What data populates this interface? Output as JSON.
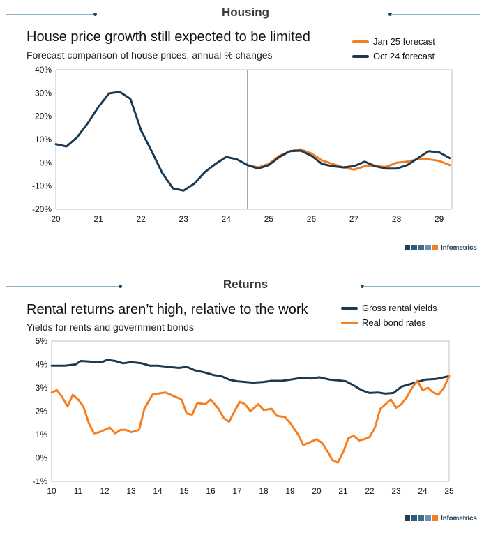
{
  "colors": {
    "navy": "#1b3a52",
    "orange": "#f57f20",
    "rule": "#8fb3c8",
    "axis": "#bfbfbf"
  },
  "housing": {
    "section_title": "Housing",
    "brand": "Infometrics",
    "chart_data": {
      "type": "line",
      "title": "House price growth still expected to be limited",
      "subtitle": "Forecast comparison of house prices, annual % changes",
      "xlim": [
        20,
        29.3
      ],
      "ylim": [
        -20,
        40
      ],
      "x_ticks": [
        20,
        21,
        22,
        23,
        24,
        25,
        26,
        27,
        28,
        29
      ],
      "x_tick_labels": [
        "20",
        "21",
        "22",
        "23",
        "24",
        "25",
        "26",
        "27",
        "28",
        "29"
      ],
      "y_ticks": [
        -20,
        -10,
        0,
        10,
        20,
        30,
        40
      ],
      "y_tick_labels": [
        "-20%",
        "-10%",
        "0%",
        "10%",
        "20%",
        "30%",
        "40%"
      ],
      "vline_x": 24.5,
      "legend_position": "top-right",
      "series": [
        {
          "name": "Jan 25 forecast",
          "color": "#f57f20",
          "x": [
            24.5,
            24.75,
            25.0,
            25.25,
            25.5,
            25.75,
            26.0,
            26.25,
            26.5,
            26.75,
            27.0,
            27.25,
            27.5,
            27.75,
            28.0,
            28.25,
            28.5,
            28.75,
            29.0,
            29.25
          ],
          "y": [
            -1,
            -2,
            -0.5,
            3,
            5,
            5.8,
            4,
            1,
            -0.5,
            -2,
            -3,
            -1.5,
            -1.5,
            -1.8,
            0,
            0.5,
            1.5,
            1.5,
            0.8,
            -1
          ]
        },
        {
          "name": "Oct 24 forecast",
          "color": "#1b3a52",
          "x": [
            20.0,
            20.25,
            20.5,
            20.75,
            21.0,
            21.25,
            21.5,
            21.75,
            22.0,
            22.25,
            22.5,
            22.75,
            23.0,
            23.25,
            23.5,
            23.75,
            24.0,
            24.25,
            24.5,
            24.75,
            25.0,
            25.25,
            25.5,
            25.75,
            26.0,
            26.25,
            26.5,
            26.75,
            27.0,
            27.25,
            27.5,
            27.75,
            28.0,
            28.25,
            28.5,
            28.75,
            29.0,
            29.25
          ],
          "y": [
            8,
            7,
            11,
            17,
            24,
            29.8,
            30.5,
            27.5,
            14,
            5,
            -4.5,
            -11,
            -12,
            -9,
            -4,
            -0.5,
            2.5,
            1.5,
            -1,
            -2.5,
            -1,
            2.5,
            5,
            5.2,
            3,
            -0.5,
            -1.5,
            -2,
            -1.5,
            0.5,
            -1.5,
            -2.5,
            -2.5,
            -1,
            2,
            5,
            4.5,
            2
          ]
        }
      ]
    }
  },
  "returns": {
    "section_title": "Returns",
    "brand": "Infometrics",
    "chart_data": {
      "type": "line",
      "title": "Rental returns aren’t high, relative to the work",
      "subtitle": "Yields for rents and government bonds",
      "xlim": [
        10,
        25
      ],
      "ylim": [
        -1,
        5
      ],
      "x_ticks": [
        10,
        11,
        12,
        13,
        14,
        15,
        16,
        17,
        18,
        19,
        20,
        21,
        22,
        23,
        24,
        25
      ],
      "x_tick_labels": [
        "10",
        "11",
        "12",
        "13",
        "14",
        "15",
        "16",
        "17",
        "18",
        "19",
        "20",
        "21",
        "22",
        "23",
        "24",
        "25"
      ],
      "y_ticks": [
        -1,
        0,
        1,
        2,
        3,
        4,
        5
      ],
      "y_tick_labels": [
        "-1%",
        "0%",
        "1%",
        "2%",
        "3%",
        "4%",
        "5%"
      ],
      "legend_position": "top-right",
      "series": [
        {
          "name": "Gross rental yields",
          "color": "#1b3a52",
          "x": [
            10.0,
            10.5,
            10.9,
            11.1,
            11.5,
            11.9,
            12.1,
            12.4,
            12.7,
            13.0,
            13.4,
            13.7,
            14.0,
            14.4,
            14.8,
            15.1,
            15.4,
            15.8,
            16.1,
            16.4,
            16.7,
            17.0,
            17.3,
            17.6,
            18.0,
            18.3,
            18.7,
            19.0,
            19.4,
            19.8,
            20.1,
            20.5,
            20.8,
            21.1,
            21.4,
            21.7,
            22.0,
            22.3,
            22.6,
            22.9,
            23.2,
            23.5,
            23.8,
            24.1,
            24.5,
            25.0
          ],
          "y": [
            3.95,
            3.95,
            4.0,
            4.15,
            4.12,
            4.1,
            4.2,
            4.15,
            4.05,
            4.1,
            4.05,
            3.95,
            3.95,
            3.9,
            3.85,
            3.9,
            3.75,
            3.65,
            3.55,
            3.5,
            3.35,
            3.28,
            3.25,
            3.22,
            3.25,
            3.3,
            3.3,
            3.35,
            3.42,
            3.4,
            3.45,
            3.35,
            3.32,
            3.28,
            3.1,
            2.9,
            2.78,
            2.8,
            2.75,
            2.78,
            3.05,
            3.15,
            3.25,
            3.35,
            3.38,
            3.5
          ]
        },
        {
          "name": "Real bond rates",
          "color": "#f57f20",
          "x": [
            10.0,
            10.2,
            10.4,
            10.6,
            10.8,
            11.0,
            11.2,
            11.4,
            11.6,
            11.8,
            12.0,
            12.2,
            12.4,
            12.6,
            12.8,
            13.0,
            13.3,
            13.5,
            13.8,
            14.0,
            14.3,
            14.6,
            14.9,
            15.1,
            15.3,
            15.5,
            15.8,
            16.0,
            16.3,
            16.5,
            16.7,
            16.9,
            17.1,
            17.3,
            17.5,
            17.8,
            18.0,
            18.3,
            18.5,
            18.8,
            19.0,
            19.3,
            19.5,
            19.8,
            20.0,
            20.2,
            20.4,
            20.6,
            20.8,
            21.0,
            21.2,
            21.4,
            21.6,
            21.8,
            22.0,
            22.2,
            22.4,
            22.6,
            22.8,
            23.0,
            23.2,
            23.4,
            23.6,
            23.8,
            24.0,
            24.2,
            24.4,
            24.6,
            24.8,
            25.0
          ],
          "y": [
            2.8,
            2.9,
            2.6,
            2.2,
            2.7,
            2.5,
            2.2,
            1.5,
            1.05,
            1.1,
            1.2,
            1.3,
            1.05,
            1.2,
            1.2,
            1.1,
            1.2,
            2.1,
            2.7,
            2.75,
            2.8,
            2.65,
            2.5,
            1.9,
            1.85,
            2.35,
            2.3,
            2.5,
            2.1,
            1.7,
            1.55,
            2.0,
            2.4,
            2.3,
            2.0,
            2.3,
            2.05,
            2.1,
            1.8,
            1.75,
            1.5,
            1.0,
            0.55,
            0.7,
            0.8,
            0.65,
            0.3,
            -0.1,
            -0.2,
            0.25,
            0.85,
            0.95,
            0.75,
            0.8,
            0.9,
            1.3,
            2.1,
            2.3,
            2.5,
            2.15,
            2.3,
            2.6,
            3.0,
            3.3,
            2.9,
            3.0,
            2.8,
            2.7,
            3.0,
            3.5
          ]
        }
      ]
    }
  }
}
